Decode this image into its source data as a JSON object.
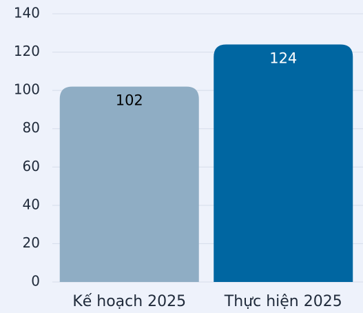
{
  "chart_data": {
    "type": "bar",
    "categories": [
      "Kế hoạch 2025",
      "Thực hiện 2025"
    ],
    "values": [
      102,
      124
    ],
    "colors": [
      "#8fadc4",
      "#0066a1"
    ],
    "label_colors": [
      "#000000",
      "#ffffff"
    ],
    "ylim": [
      0,
      140
    ],
    "yticks": [
      0,
      20,
      40,
      60,
      80,
      100,
      120,
      140
    ],
    "grid": true
  }
}
